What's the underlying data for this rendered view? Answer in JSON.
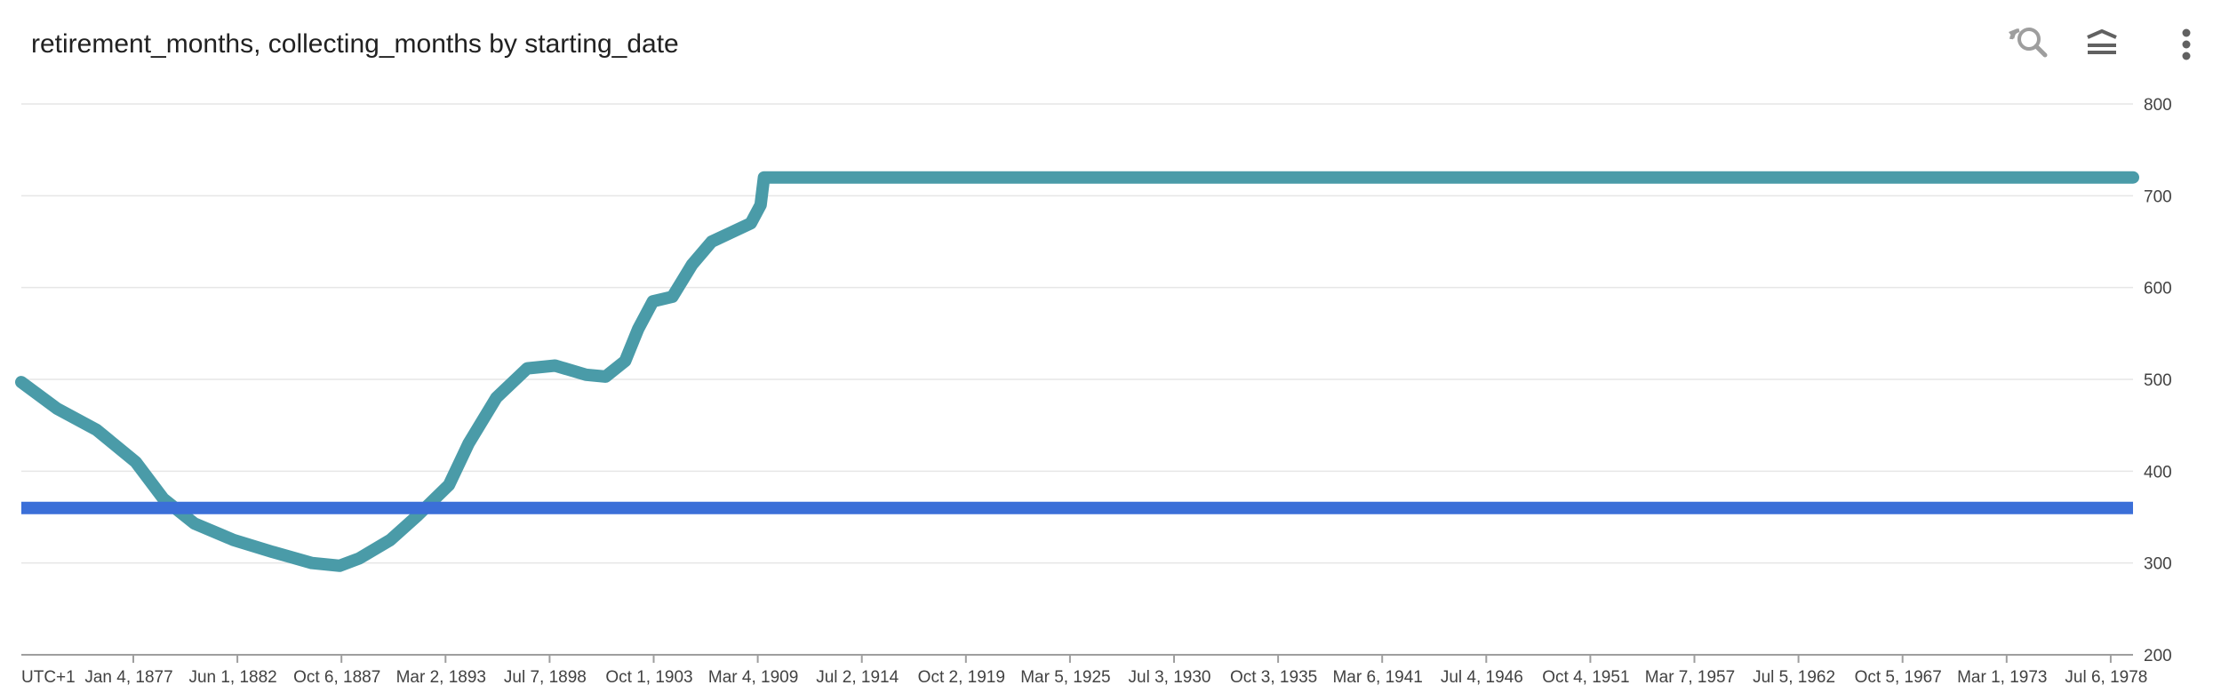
{
  "header": {
    "title": "retirement_months, collecting_months by starting_date"
  },
  "toolbar": {
    "icons": [
      "zoom-reset-icon",
      "layers-icon",
      "more-vert-icon"
    ]
  },
  "colors": {
    "retirement_months": "#4a9ba8",
    "collecting_months": "#3b6fd8",
    "grid": "#e6e6e6",
    "axis": "#9e9e9e"
  },
  "chart_data": {
    "type": "line",
    "title": "retirement_months, collecting_months by starting_date",
    "xlabel": "",
    "ylabel": "",
    "x_tick_labels": [
      "UTC+1",
      "Jan 4, 1877",
      "Jun 1, 1882",
      "Oct 6, 1887",
      "Mar 2, 1893",
      "Jul 7, 1898",
      "Oct 1, 1903",
      "Mar 4, 1909",
      "Jul 2, 1914",
      "Oct 2, 1919",
      "Mar 5, 1925",
      "Jul 3, 1930",
      "Oct 3, 1935",
      "Mar 6, 1941",
      "Jul 4, 1946",
      "Oct 4, 1951",
      "Mar 7, 1957",
      "Jul 5, 1962",
      "Oct 5, 1967",
      "Mar 1, 1973",
      "Jul 6, 1978"
    ],
    "y_ticks": [
      200,
      300,
      400,
      500,
      600,
      700,
      800
    ],
    "ylim": [
      200,
      800
    ],
    "xlim": [
      "1871-03-01",
      "1979-01-01"
    ],
    "grid": true,
    "legend": "none",
    "series": [
      {
        "key": "retirement_months",
        "x": [
          "1871-03-01",
          "1873-01-01",
          "1875-01-01",
          "1877-01-01",
          "1878-06-01",
          "1880-01-01",
          "1882-01-01",
          "1884-01-01",
          "1886-01-01",
          "1887-06-01",
          "1888-06-01",
          "1890-01-01",
          "1891-06-01",
          "1893-01-01",
          "1894-01-01",
          "1895-06-01",
          "1897-01-01",
          "1898-06-01",
          "1900-01-01",
          "1901-01-01",
          "1902-01-01",
          "1902-09-01",
          "1903-06-01",
          "1904-06-01",
          "1905-06-01",
          "1906-06-01",
          "1907-06-01",
          "1908-06-01",
          "1908-12-01",
          "1909-02-01",
          "1915-01-01",
          "1930-01-01",
          "1950-01-01",
          "1979-01-01"
        ],
        "values": [
          497,
          468,
          445,
          410,
          370,
          343,
          325,
          312,
          300,
          297,
          305,
          325,
          352,
          385,
          430,
          480,
          512,
          515,
          505,
          503,
          520,
          555,
          585,
          590,
          625,
          650,
          660,
          670,
          690,
          720,
          720,
          720,
          720,
          720
        ]
      },
      {
        "key": "collecting_months",
        "x": [
          "1871-03-01",
          "1979-01-01"
        ],
        "values": [
          360,
          360
        ]
      }
    ]
  }
}
